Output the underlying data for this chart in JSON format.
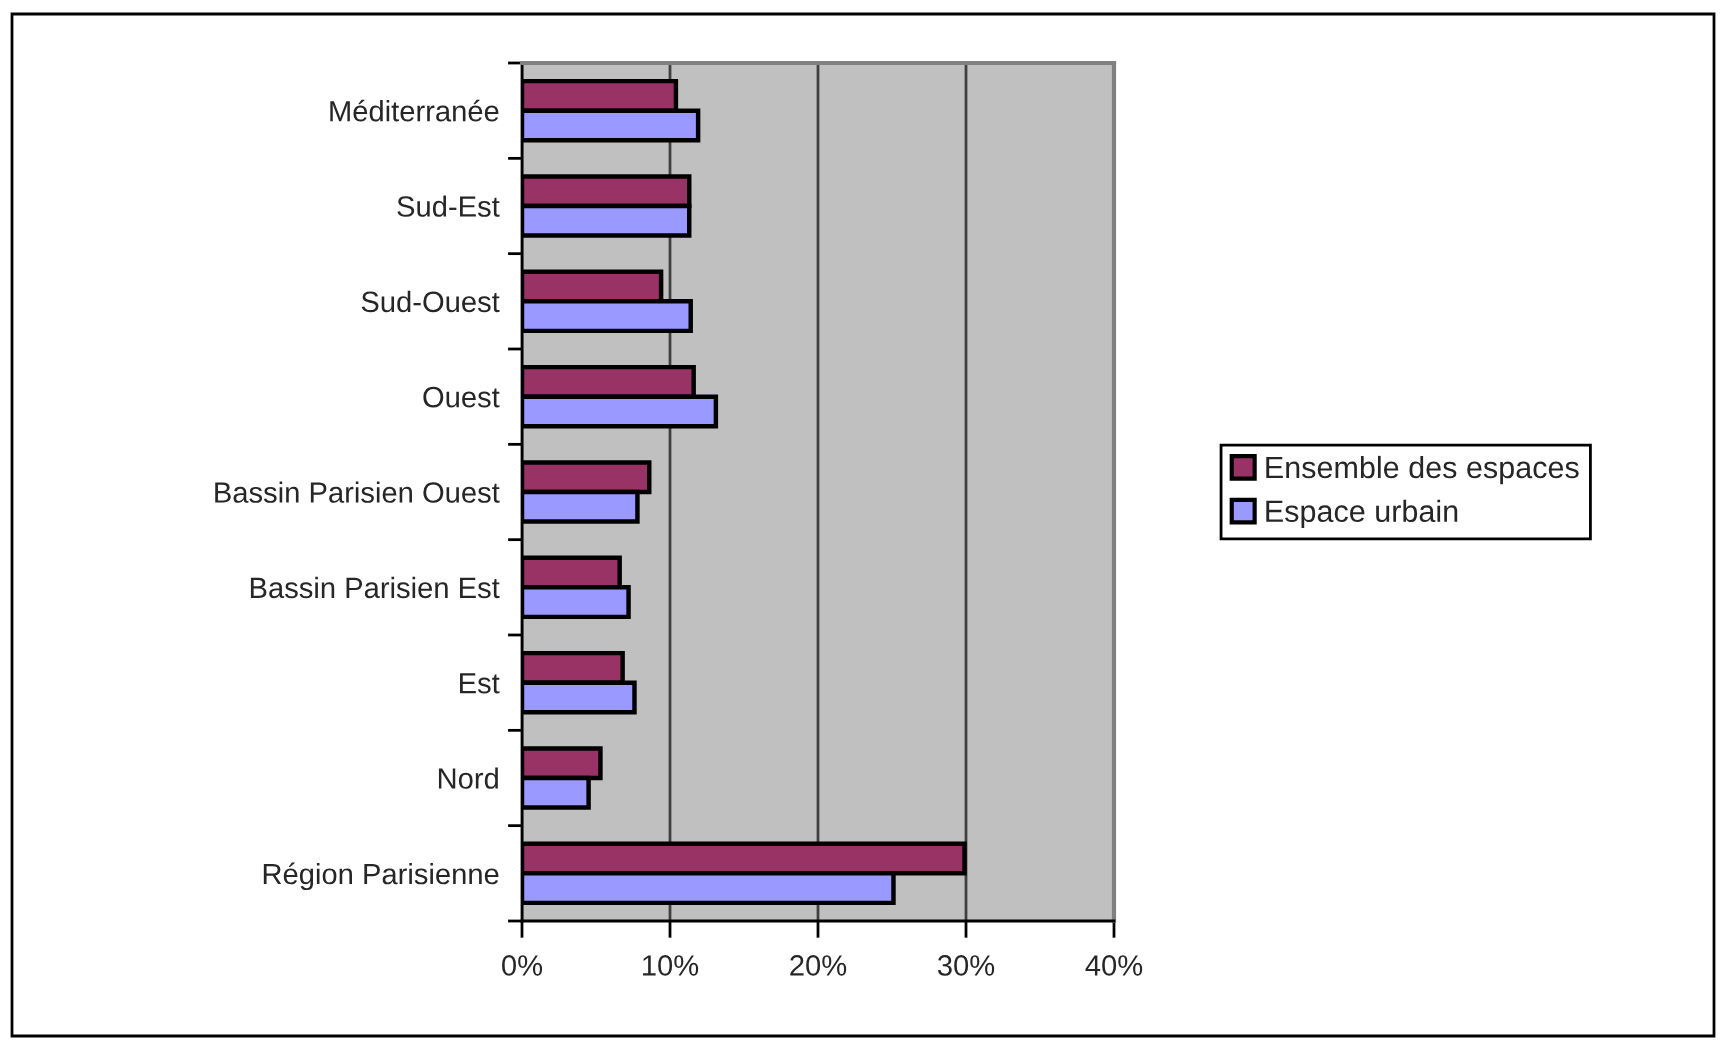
{
  "chart_data": {
    "type": "bar",
    "orientation": "horizontal",
    "categories": [
      "Méditerranée",
      "Sud-Est",
      "Sud-Ouest",
      "Ouest",
      "Bassin Parisien Ouest",
      "Bassin Parisien Est",
      "Est",
      "Nord",
      "Région Parisienne"
    ],
    "series": [
      {
        "name": "Ensemble des espaces",
        "color": "#993366",
        "values": [
          10.4,
          11.3,
          9.4,
          11.6,
          8.6,
          6.6,
          6.8,
          5.3,
          29.9
        ]
      },
      {
        "name": "Espace urbain",
        "color": "#9999ff",
        "values": [
          11.9,
          11.3,
          11.4,
          13.1,
          7.8,
          7.2,
          7.6,
          4.5,
          25.1
        ]
      }
    ],
    "xlim": [
      0,
      40
    ],
    "xticks": [
      {
        "value": 0,
        "label": "0%"
      },
      {
        "value": 10,
        "label": "10%"
      },
      {
        "value": 20,
        "label": "20%"
      },
      {
        "value": 30,
        "label": "30%"
      },
      {
        "value": 40,
        "label": "40%"
      }
    ],
    "grid": "x",
    "legend": "right"
  }
}
